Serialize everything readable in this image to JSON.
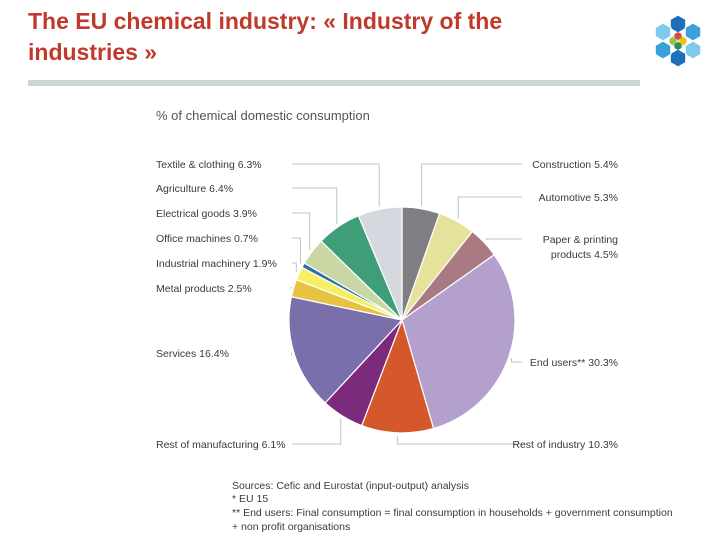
{
  "slide": {
    "title_line1": "The EU chemical industry: « Industry of the",
    "title_line2": "industries »"
  },
  "logo": {
    "icon": "hexagon-cluster-logo",
    "colors": [
      "#3aa0d8",
      "#1f6fb8",
      "#2e8b57",
      "#9bc23c",
      "#f2c200",
      "#d84a3a",
      "#7fc9ef"
    ]
  },
  "chart_data": {
    "type": "pie",
    "title": "% of chemical domestic consumption",
    "slices": [
      {
        "label": "Construction 5.4%",
        "name": "Construction",
        "value": 5.4,
        "color": "#7f7f83"
      },
      {
        "label": "Automotive 5.3%",
        "name": "Automotive",
        "value": 5.3,
        "color": "#e5e29c"
      },
      {
        "label": "Paper & printing products 4.5%",
        "name": "Paper & printing products",
        "value": 4.5,
        "color": "#a97a82"
      },
      {
        "label": "End users** 30.3%",
        "name": "End users**",
        "value": 30.3,
        "color": "#b4a0cc"
      },
      {
        "label": "Rest of industry 10.3%",
        "name": "Rest of industry",
        "value": 10.3,
        "color": "#d4582c"
      },
      {
        "label": "Rest of manufacturing 6.1%",
        "name": "Rest of manufacturing",
        "value": 6.1,
        "color": "#7b2a7c"
      },
      {
        "label": "Services 16.4%",
        "name": "Services",
        "value": 16.4,
        "color": "#7a6eab"
      },
      {
        "label": "Metal products 2.5%",
        "name": "Metal products",
        "value": 2.5,
        "color": "#e6c340"
      },
      {
        "label": "Industrial machinery 1.9%",
        "name": "Industrial machinery",
        "value": 1.9,
        "color": "#f7ef63"
      },
      {
        "label": "Office machines 0.7%",
        "name": "Office machines",
        "value": 0.7,
        "color": "#2f6fa5"
      },
      {
        "label": "Electrical goods 3.9%",
        "name": "Electrical goods",
        "value": 3.9,
        "color": "#c8d7a3"
      },
      {
        "label": "Agriculture 6.4%",
        "name": "Agriculture",
        "value": 6.4,
        "color": "#3f9e78"
      },
      {
        "label": "Textile & clothing 6.3%",
        "name": "Textile & clothing",
        "value": 6.3,
        "color": "#d5d8de"
      }
    ],
    "sources": [
      "Sources: Cefic and Eurostat (input-output) analysis",
      "* EU 15",
      "** End users: Final consumption = final consumption in households + government consumption",
      "+ non profit organisations"
    ]
  }
}
